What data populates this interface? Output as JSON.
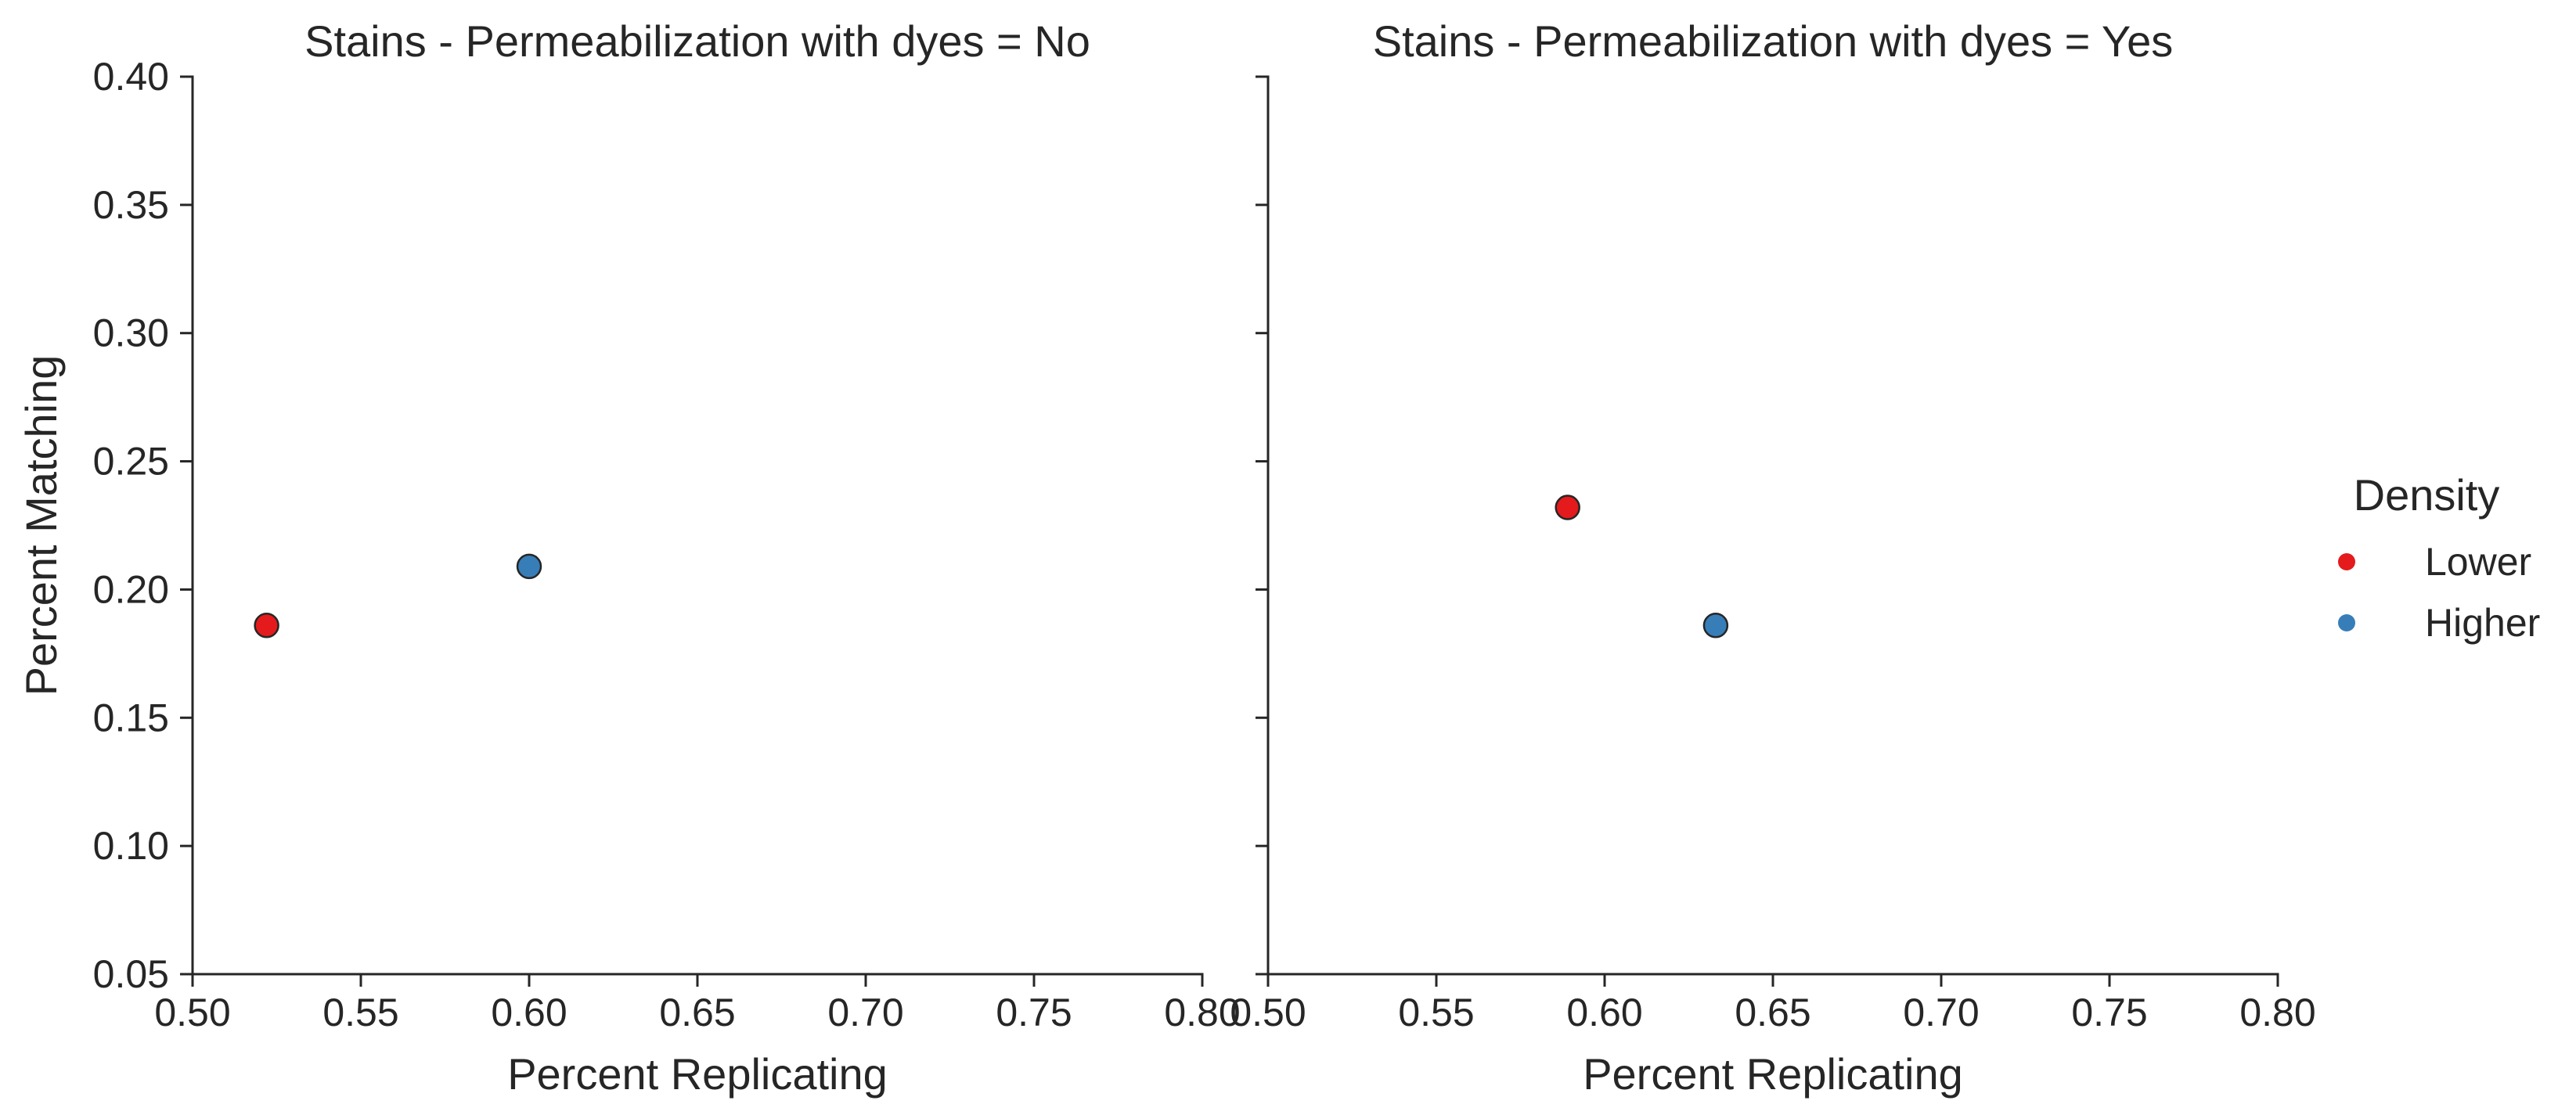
{
  "chart_data": {
    "type": "scatter",
    "ylabel": "Percent Matching",
    "xlabel": "Percent Replicating",
    "xlim": [
      0.5,
      0.8
    ],
    "ylim": [
      0.05,
      0.4
    ],
    "x_ticks": [
      "0.50",
      "0.55",
      "0.60",
      "0.65",
      "0.70",
      "0.75",
      "0.80"
    ],
    "y_ticks": [
      "0.05",
      "0.10",
      "0.15",
      "0.20",
      "0.25",
      "0.30",
      "0.35",
      "0.40"
    ],
    "grid": false,
    "legend_position": "right",
    "legend": {
      "title": "Density",
      "entries": [
        {
          "label": "Lower",
          "color": "#e41a1c"
        },
        {
          "label": "Higher",
          "color": "#377eb8"
        }
      ]
    },
    "panels": [
      {
        "title": "Stains - Permeabilization with dyes = No",
        "points": [
          {
            "series": "Lower",
            "x": 0.522,
            "y": 0.186
          },
          {
            "series": "Higher",
            "x": 0.6,
            "y": 0.209
          }
        ]
      },
      {
        "title": "Stains - Permeabilization with dyes = Yes",
        "points": [
          {
            "series": "Lower",
            "x": 0.589,
            "y": 0.232
          },
          {
            "series": "Higher",
            "x": 0.633,
            "y": 0.186
          }
        ]
      }
    ]
  }
}
